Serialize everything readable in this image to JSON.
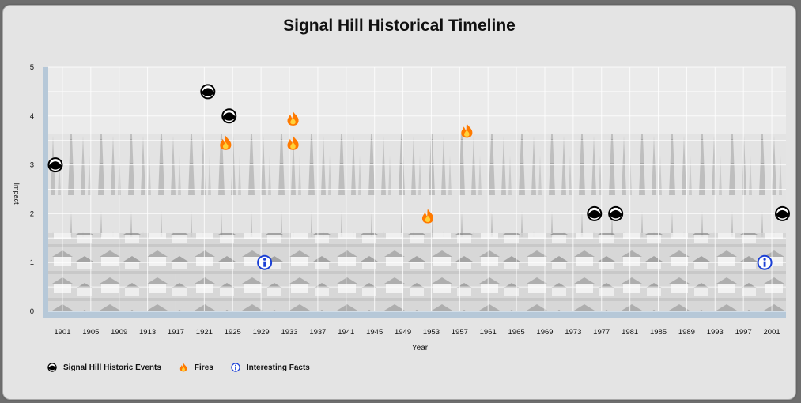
{
  "chart_data": {
    "type": "scatter",
    "title": "Signal Hill Historical Timeline",
    "xlabel": "Year",
    "ylabel": "Impact",
    "xlim": [
      1899,
      2003
    ],
    "ylim": [
      0,
      5
    ],
    "x_ticks": [
      1901,
      1905,
      1909,
      1913,
      1917,
      1921,
      1925,
      1929,
      1933,
      1937,
      1941,
      1945,
      1949,
      1953,
      1957,
      1961,
      1965,
      1969,
      1973,
      1977,
      1981,
      1985,
      1989,
      1993,
      1997,
      2001
    ],
    "y_ticks": [
      0,
      1,
      2,
      3,
      4,
      5
    ],
    "grid": true,
    "legend_position": "bottom-left",
    "background": "photograph of oil derricks on Signal Hill",
    "series": [
      {
        "name": "Signal Hill Historic Events",
        "icon": "oil-drop-icon",
        "color": "#000000",
        "points": [
          {
            "x": 1900,
            "y": 3
          },
          {
            "x": 1921.5,
            "y": 4.5
          },
          {
            "x": 1924.5,
            "y": 4
          },
          {
            "x": 1976,
            "y": 2
          },
          {
            "x": 1979,
            "y": 2
          },
          {
            "x": 2002.5,
            "y": 2
          }
        ]
      },
      {
        "name": "Fires",
        "icon": "flame-icon",
        "color": "#ff7a00",
        "points": [
          {
            "x": 1924,
            "y": 3.45
          },
          {
            "x": 1933.5,
            "y": 3.95
          },
          {
            "x": 1933.5,
            "y": 3.45
          },
          {
            "x": 1952.5,
            "y": 1.95
          },
          {
            "x": 1958,
            "y": 3.7
          }
        ]
      },
      {
        "name": "Interesting Facts",
        "icon": "info-icon",
        "color": "#1a3fd6",
        "points": [
          {
            "x": 1929.5,
            "y": 1
          },
          {
            "x": 2000,
            "y": 1
          }
        ]
      }
    ]
  }
}
